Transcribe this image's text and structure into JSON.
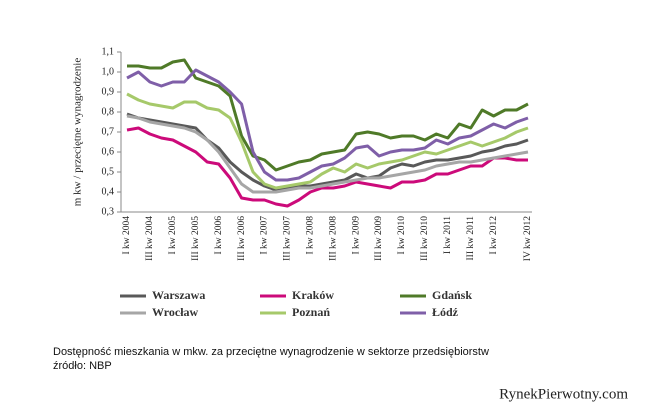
{
  "chart_data": {
    "type": "line",
    "y_label": "m kw / przeciętne wynagrodzenie",
    "categories": [
      "I kw 2004",
      null,
      "III kw 2004",
      null,
      "I kw 2005",
      null,
      "III kw 2005",
      null,
      "I kw 2006",
      null,
      "III kw 2006",
      null,
      "I kw 2007",
      null,
      "III kw 2007",
      null,
      "I kw 2008",
      null,
      "III kw 2008",
      null,
      "I kw 2009",
      null,
      "III kw 2009",
      null,
      "I kw 2010",
      null,
      "III kw 2010",
      null,
      "I kw 2011",
      null,
      "III kw 2011",
      null,
      "I kw 2012",
      null,
      null,
      "IV kw 2012"
    ],
    "ylim": [
      0.3,
      1.1
    ],
    "yticks": [
      {
        "value": 0.3,
        "label": "0,3"
      },
      {
        "value": 0.4,
        "label": "0,4"
      },
      {
        "value": 0.5,
        "label": "0,5"
      },
      {
        "value": 0.6,
        "label": "0,6"
      },
      {
        "value": 0.7,
        "label": "0,7"
      },
      {
        "value": 0.8,
        "label": "0,8"
      },
      {
        "value": 0.9,
        "label": "0,9"
      },
      {
        "value": 1.0,
        "label": "1,0"
      },
      {
        "value": 1.1,
        "label": "1,1"
      }
    ],
    "series": [
      {
        "name": "Warszawa",
        "color": "#595959",
        "values": [
          0.79,
          0.77,
          0.76,
          0.75,
          0.74,
          0.73,
          0.72,
          0.66,
          0.62,
          0.55,
          0.5,
          0.46,
          0.43,
          0.41,
          0.42,
          0.43,
          0.43,
          0.44,
          0.45,
          0.46,
          0.49,
          0.47,
          0.48,
          0.52,
          0.54,
          0.53,
          0.55,
          0.56,
          0.56,
          0.57,
          0.58,
          0.6,
          0.61,
          0.63,
          0.64,
          0.66
        ]
      },
      {
        "name": "Kraków",
        "color": "#cc0a7a",
        "values": [
          0.71,
          0.72,
          0.69,
          0.67,
          0.66,
          0.63,
          0.6,
          0.55,
          0.54,
          0.47,
          0.37,
          0.36,
          0.36,
          0.34,
          0.33,
          0.36,
          0.4,
          0.42,
          0.42,
          0.43,
          0.45,
          0.44,
          0.43,
          0.42,
          0.45,
          0.45,
          0.46,
          0.49,
          0.49,
          0.51,
          0.53,
          0.53,
          0.57,
          0.57,
          0.56,
          0.56
        ]
      },
      {
        "name": "Gdańsk",
        "color": "#4f7a28",
        "values": [
          1.03,
          1.03,
          1.02,
          1.02,
          1.05,
          1.06,
          0.97,
          0.95,
          0.93,
          0.88,
          0.68,
          0.58,
          0.56,
          0.51,
          0.53,
          0.55,
          0.56,
          0.59,
          0.6,
          0.61,
          0.69,
          0.7,
          0.69,
          0.67,
          0.68,
          0.68,
          0.66,
          0.69,
          0.67,
          0.74,
          0.72,
          0.81,
          0.78,
          0.81,
          0.81,
          0.84
        ]
      },
      {
        "name": "Wrocław",
        "color": "#a6a6a6",
        "values": [
          0.78,
          0.77,
          0.75,
          0.74,
          0.73,
          0.72,
          0.7,
          0.66,
          0.6,
          0.52,
          0.44,
          0.4,
          0.4,
          0.4,
          0.41,
          0.42,
          0.42,
          0.43,
          0.44,
          0.45,
          0.46,
          0.47,
          0.47,
          0.48,
          0.49,
          0.5,
          0.51,
          0.53,
          0.54,
          0.55,
          0.55,
          0.56,
          0.57,
          0.58,
          0.59,
          0.6
        ]
      },
      {
        "name": "Poznań",
        "color": "#a6c96a",
        "values": [
          0.89,
          0.86,
          0.84,
          0.83,
          0.82,
          0.85,
          0.85,
          0.82,
          0.81,
          0.77,
          0.65,
          0.5,
          0.44,
          0.42,
          0.43,
          0.44,
          0.45,
          0.49,
          0.52,
          0.5,
          0.54,
          0.52,
          0.54,
          0.55,
          0.56,
          0.58,
          0.6,
          0.59,
          0.61,
          0.63,
          0.65,
          0.63,
          0.65,
          0.67,
          0.7,
          0.72
        ]
      },
      {
        "name": "Łódź",
        "color": "#7f5fa8",
        "values": [
          0.97,
          1.0,
          0.95,
          0.93,
          0.95,
          0.95,
          1.01,
          0.98,
          0.95,
          0.9,
          0.84,
          0.6,
          0.5,
          0.46,
          0.46,
          0.47,
          0.5,
          0.53,
          0.54,
          0.57,
          0.62,
          0.63,
          0.58,
          0.6,
          0.61,
          0.61,
          0.62,
          0.66,
          0.64,
          0.67,
          0.68,
          0.71,
          0.74,
          0.72,
          0.75,
          0.77
        ]
      }
    ]
  },
  "caption": {
    "line1": "Dostępność mieszkania w mkw. za przeciętne wynagrodzenie  w sektorze przedsiębiorstw",
    "line2": "źródło: NBP"
  },
  "watermark": "RynekPierwotny.com"
}
